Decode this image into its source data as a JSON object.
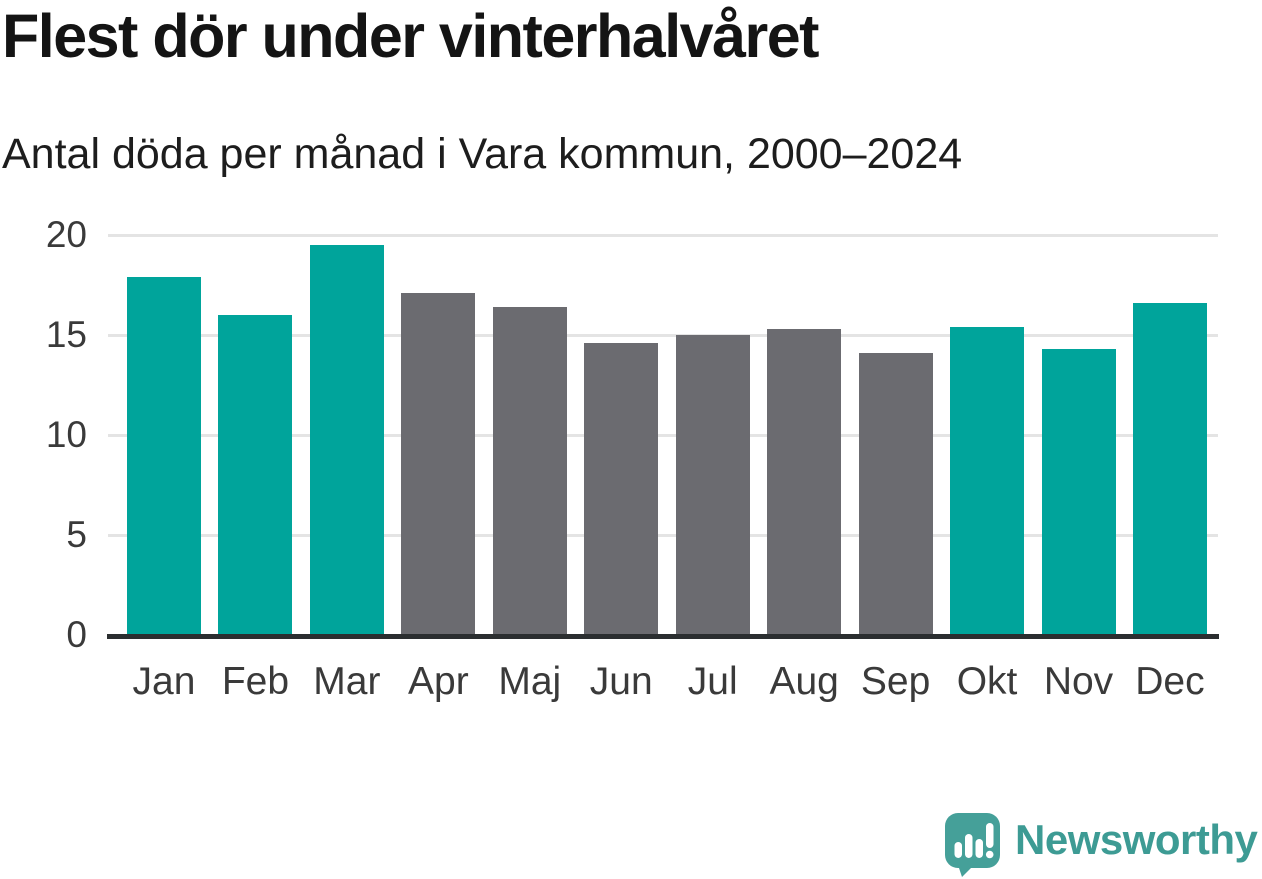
{
  "chart_data": {
    "type": "bar",
    "title": "Flest dör under vinterhalvåret",
    "subtitle": "Antal döda per månad i Vara kommun, 2000–2024",
    "categories": [
      "Jan",
      "Feb",
      "Mar",
      "Apr",
      "Maj",
      "Jun",
      "Jul",
      "Aug",
      "Sep",
      "Okt",
      "Nov",
      "Dec"
    ],
    "values": [
      17.9,
      16.0,
      19.5,
      17.1,
      16.4,
      14.6,
      15.0,
      15.3,
      14.1,
      15.4,
      14.3,
      16.6
    ],
    "bar_colors": [
      "teal",
      "teal",
      "teal",
      "gray",
      "gray",
      "gray",
      "gray",
      "gray",
      "gray",
      "teal",
      "teal",
      "teal"
    ],
    "xlabel": "",
    "ylabel": "",
    "ylim": [
      0,
      20
    ],
    "yticks": [
      0,
      5,
      10,
      15,
      20
    ],
    "grid": "horizontal",
    "legend": "none"
  },
  "colors": {
    "teal": "#00a49b",
    "gray": "#6b6b70",
    "gridline": "#e4e4e4",
    "axis_line": "#2b2e30",
    "logo_teal": "#45a099",
    "logo_text_teal": "#3d9b94"
  },
  "branding": {
    "logo_text": "Newsworthy",
    "logo_icon": "speech-bubble-bar-chart-exclamation"
  }
}
